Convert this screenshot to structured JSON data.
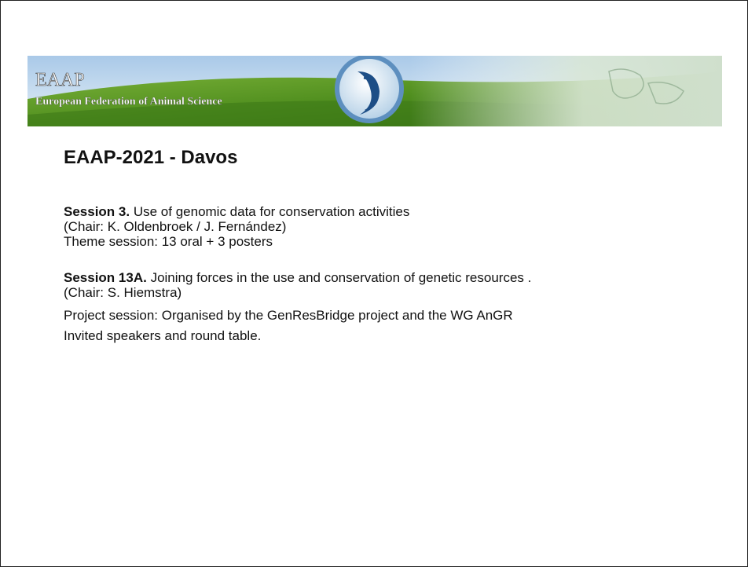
{
  "header": {
    "org": "EAAP",
    "subtitle": "European Federation of Animal Science"
  },
  "title": "EAAP-2021 - Davos",
  "sessions": [
    {
      "label": "Session 3.",
      "title": "Use of genomic data for conservation activities",
      "chair": "(Chair: K. Oldenbroek / J. Fernández)",
      "lines": [
        "Theme session: 13 oral + 3 posters"
      ]
    },
    {
      "label": "Session 13A.",
      "title": "Joining forces in the use and conservation of genetic resources .",
      "chair": "(Chair: S. Hiemstra)",
      "lines": [
        "Project session: Organised by the GenResBridge project and the WG AnGR",
        "Invited speakers and round table."
      ]
    }
  ]
}
